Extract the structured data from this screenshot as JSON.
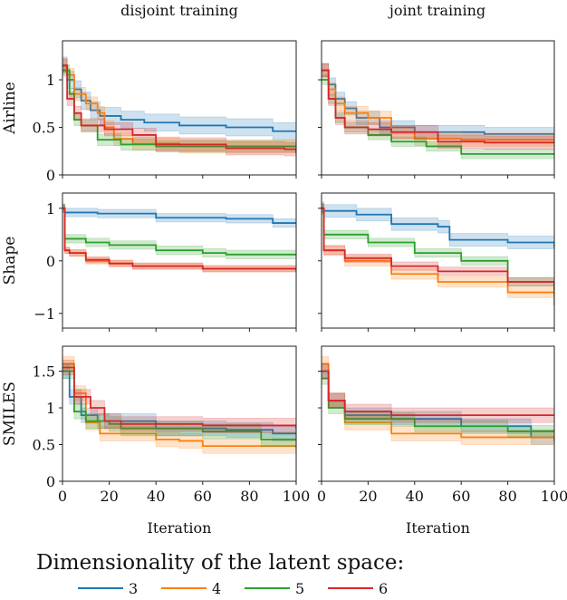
{
  "colors": {
    "3": "#1f77b4",
    "4": "#ff7f0e",
    "5": "#2ca02c",
    "6": "#d62728"
  },
  "column_titles": [
    "disjoint training",
    "joint training"
  ],
  "row_labels": [
    "Airline",
    "Shape",
    "SMILES"
  ],
  "xlabel": "Iteration",
  "legend": {
    "title": "Dimensionality of the latent space:",
    "entries": [
      "3",
      "4",
      "5",
      "6"
    ],
    "placement": "bottom"
  },
  "chart_data": [
    {
      "type": "line",
      "panel": "Airline / disjoint training",
      "ylabel": "Airline",
      "xlabel": "",
      "xlim": [
        0,
        100
      ],
      "ylim": [
        0,
        1.41
      ],
      "xticks": [
        0,
        20,
        40,
        60,
        80,
        100
      ],
      "xtick_labels": [],
      "yticks": [
        0,
        0.5,
        1
      ],
      "ytick_labels": [
        "0",
        "0.5",
        "1"
      ],
      "series": [
        {
          "name": "3",
          "std": 0.09,
          "x": [
            0,
            2,
            5,
            8,
            12,
            16,
            25,
            35,
            50,
            70,
            90,
            100
          ],
          "y": [
            1.15,
            1.0,
            0.9,
            0.78,
            0.68,
            0.62,
            0.58,
            0.55,
            0.52,
            0.5,
            0.46,
            0.46
          ]
        },
        {
          "name": "4",
          "std": 0.07,
          "x": [
            0,
            2,
            5,
            10,
            15,
            18,
            22,
            30,
            50,
            100
          ],
          "y": [
            1.15,
            1.05,
            0.85,
            0.75,
            0.65,
            0.5,
            0.38,
            0.33,
            0.3,
            0.29
          ]
        },
        {
          "name": "5",
          "std": 0.06,
          "x": [
            0,
            3,
            5,
            8,
            15,
            25,
            40,
            100
          ],
          "y": [
            1.1,
            0.85,
            0.58,
            0.52,
            0.37,
            0.32,
            0.3,
            0.29
          ]
        },
        {
          "name": "6",
          "std": 0.07,
          "x": [
            0,
            2,
            5,
            8,
            18,
            30,
            40,
            70,
            95,
            100
          ],
          "y": [
            1.15,
            0.8,
            0.65,
            0.52,
            0.48,
            0.42,
            0.32,
            0.28,
            0.27,
            0.23
          ]
        }
      ]
    },
    {
      "type": "line",
      "panel": "Airline / joint training",
      "ylabel": "",
      "xlabel": "",
      "xlim": [
        0,
        100
      ],
      "ylim": [
        0,
        1.41
      ],
      "xticks": [
        0,
        20,
        40,
        60,
        80,
        100
      ],
      "xtick_labels": [],
      "yticks": [
        0,
        0.5,
        1
      ],
      "ytick_labels": [],
      "series": [
        {
          "name": "3",
          "std": 0.07,
          "x": [
            0,
            3,
            6,
            10,
            15,
            25,
            40,
            70,
            100
          ],
          "y": [
            1.1,
            0.95,
            0.8,
            0.7,
            0.6,
            0.5,
            0.45,
            0.43,
            0.42
          ]
        },
        {
          "name": "4",
          "std": 0.07,
          "x": [
            0,
            3,
            6,
            10,
            20,
            30,
            40,
            60,
            100
          ],
          "y": [
            1.1,
            0.9,
            0.75,
            0.65,
            0.6,
            0.45,
            0.38,
            0.37,
            0.36
          ]
        },
        {
          "name": "5",
          "std": 0.05,
          "x": [
            0,
            3,
            6,
            10,
            20,
            30,
            45,
            60,
            100
          ],
          "y": [
            1.0,
            0.8,
            0.6,
            0.5,
            0.42,
            0.35,
            0.3,
            0.22,
            0.21
          ]
        },
        {
          "name": "6",
          "std": 0.07,
          "x": [
            0,
            3,
            6,
            10,
            20,
            30,
            50,
            70,
            100
          ],
          "y": [
            1.1,
            0.8,
            0.6,
            0.5,
            0.48,
            0.45,
            0.35,
            0.34,
            0.34
          ]
        }
      ]
    },
    {
      "type": "line",
      "panel": "Shape / disjoint training",
      "ylabel": "Shape",
      "xlabel": "",
      "xlim": [
        0,
        100
      ],
      "ylim": [
        -1.28,
        1.29
      ],
      "xticks": [
        0,
        20,
        40,
        60,
        80,
        100
      ],
      "xtick_labels": [],
      "yticks": [
        -1,
        0,
        1
      ],
      "ytick_labels": [
        "−1",
        "0",
        "1"
      ],
      "series": [
        {
          "name": "3",
          "std": 0.08,
          "x": [
            0,
            1,
            15,
            40,
            70,
            90,
            100
          ],
          "y": [
            1.0,
            0.92,
            0.9,
            0.82,
            0.8,
            0.72,
            0.7
          ]
        },
        {
          "name": "4",
          "std": 0.06,
          "x": [
            0,
            1,
            3,
            10,
            20,
            30,
            60,
            100
          ],
          "y": [
            1.0,
            0.2,
            0.15,
            0.0,
            -0.05,
            -0.1,
            -0.15,
            -0.2
          ]
        },
        {
          "name": "5",
          "std": 0.08,
          "x": [
            0,
            1,
            10,
            20,
            40,
            60,
            70,
            100
          ],
          "y": [
            1.0,
            0.42,
            0.35,
            0.3,
            0.2,
            0.15,
            0.12,
            0.12
          ]
        },
        {
          "name": "6",
          "std": 0.06,
          "x": [
            0,
            1,
            3,
            10,
            20,
            30,
            60,
            100
          ],
          "y": [
            1.0,
            0.2,
            0.15,
            0.02,
            -0.05,
            -0.1,
            -0.15,
            -0.18
          ]
        }
      ]
    },
    {
      "type": "line",
      "panel": "Shape / joint training",
      "ylabel": "",
      "xlabel": "",
      "xlim": [
        0,
        100
      ],
      "ylim": [
        -1.28,
        1.29
      ],
      "xticks": [
        0,
        20,
        40,
        60,
        80,
        100
      ],
      "xtick_labels": [],
      "yticks": [
        -1,
        0,
        1
      ],
      "ytick_labels": [],
      "series": [
        {
          "name": "3",
          "std": 0.12,
          "x": [
            0,
            1,
            15,
            30,
            50,
            55,
            80,
            100
          ],
          "y": [
            1.0,
            0.95,
            0.88,
            0.7,
            0.65,
            0.4,
            0.35,
            0.25
          ]
        },
        {
          "name": "4",
          "std": 0.1,
          "x": [
            0,
            1,
            10,
            30,
            50,
            80,
            100
          ],
          "y": [
            1.0,
            0.2,
            0.0,
            -0.25,
            -0.4,
            -0.6,
            -0.85
          ]
        },
        {
          "name": "5",
          "std": 0.08,
          "x": [
            0,
            1,
            20,
            40,
            60,
            80,
            100
          ],
          "y": [
            1.0,
            0.5,
            0.35,
            0.15,
            0.0,
            -0.4,
            -0.65
          ]
        },
        {
          "name": "6",
          "std": 0.08,
          "x": [
            0,
            1,
            10,
            30,
            50,
            80,
            100
          ],
          "y": [
            1.0,
            0.2,
            0.05,
            -0.1,
            -0.2,
            -0.4,
            -0.55
          ]
        }
      ]
    },
    {
      "type": "line",
      "panel": "SMILES / disjoint training",
      "ylabel": "SMILES",
      "xlabel": "Iteration",
      "xlim": [
        0,
        100
      ],
      "ylim": [
        0,
        1.84
      ],
      "xticks": [
        0,
        20,
        40,
        60,
        80,
        100
      ],
      "xtick_labels": [
        "0",
        "20",
        "40",
        "60",
        "80",
        "100"
      ],
      "yticks": [
        0,
        0.5,
        1,
        1.5
      ],
      "ytick_labels": [
        "0",
        "0.5",
        "1",
        "1.5"
      ],
      "series": [
        {
          "name": "3",
          "std": 0.1,
          "x": [
            0,
            3,
            8,
            15,
            40,
            70,
            90,
            100
          ],
          "y": [
            1.5,
            1.15,
            0.9,
            0.82,
            0.72,
            0.7,
            0.65,
            0.65
          ]
        },
        {
          "name": "4",
          "std": 0.1,
          "x": [
            0,
            5,
            10,
            16,
            40,
            50,
            60,
            100
          ],
          "y": [
            1.6,
            1.2,
            0.8,
            0.65,
            0.57,
            0.55,
            0.48,
            0.45
          ]
        },
        {
          "name": "5",
          "std": 0.1,
          "x": [
            0,
            5,
            10,
            20,
            25,
            60,
            85,
            100
          ],
          "y": [
            1.5,
            0.95,
            0.82,
            0.78,
            0.72,
            0.68,
            0.57,
            0.57
          ]
        },
        {
          "name": "6",
          "std": 0.1,
          "x": [
            0,
            5,
            12,
            18,
            25,
            60,
            100
          ],
          "y": [
            1.55,
            1.15,
            1.0,
            0.82,
            0.78,
            0.76,
            0.72
          ]
        }
      ]
    },
    {
      "type": "line",
      "panel": "SMILES / joint training",
      "ylabel": "",
      "xlabel": "Iteration",
      "xlim": [
        0,
        100
      ],
      "ylim": [
        0,
        1.84
      ],
      "xticks": [
        0,
        20,
        40,
        60,
        80,
        100
      ],
      "xtick_labels": [
        "0",
        "20",
        "40",
        "60",
        "80",
        "100"
      ],
      "yticks": [
        0,
        0.5,
        1,
        1.5
      ],
      "ytick_labels": [],
      "series": [
        {
          "name": "3",
          "std": 0.1,
          "x": [
            0,
            3,
            10,
            30,
            60,
            90,
            100
          ],
          "y": [
            1.5,
            1.1,
            0.9,
            0.85,
            0.75,
            0.6,
            0.55
          ]
        },
        {
          "name": "4",
          "std": 0.1,
          "x": [
            0,
            3,
            10,
            30,
            60,
            100
          ],
          "y": [
            1.6,
            1.1,
            0.8,
            0.65,
            0.6,
            0.55
          ]
        },
        {
          "name": "5",
          "std": 0.08,
          "x": [
            0,
            3,
            10,
            40,
            80,
            100
          ],
          "y": [
            1.4,
            1.0,
            0.85,
            0.75,
            0.68,
            0.68
          ]
        },
        {
          "name": "6",
          "std": 0.1,
          "x": [
            0,
            3,
            10,
            30,
            100
          ],
          "y": [
            1.5,
            1.1,
            0.95,
            0.9,
            0.9
          ]
        }
      ]
    }
  ]
}
